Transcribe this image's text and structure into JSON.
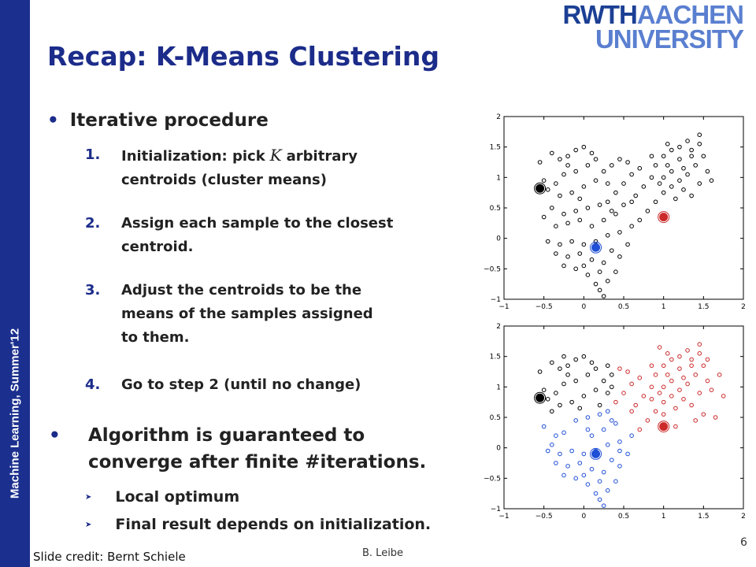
{
  "sidebar": {
    "text": "Machine Learning, Summer'12",
    "color": "#1b2f8e"
  },
  "logo": {
    "part1": "RWTH",
    "part2": "AACHEN",
    "line2": "UNIVERSITY"
  },
  "title": "Recap: K-Means Clustering",
  "bullet1": "Iterative procedure",
  "steps": [
    {
      "num": "1.",
      "pre": "Initialization: pick",
      "var": "K",
      "post": "arbitrary",
      "line2": "centroids (cluster means)"
    },
    {
      "num": "2.",
      "line1": "Assign each sample to the closest",
      "line2": "centroid."
    },
    {
      "num": "3.",
      "line1": "Adjust the centroids to be the",
      "line2": "means of the samples assigned",
      "line3": "to them."
    },
    {
      "num": "4.",
      "line1": "Go to step 2 (until no change)"
    }
  ],
  "bullet2": {
    "line1": "Algorithm is guaranteed to",
    "line2": "converge after finite #iterations."
  },
  "sub_bullets": [
    "Local optimum",
    "Final result depends on initialization."
  ],
  "footer": {
    "credit": "Slide credit: Bernt Schiele",
    "author": "B. Leibe",
    "page": "6"
  },
  "colors": {
    "title": "#1c2c8a",
    "cluster_black": "#000000",
    "cluster_red": "#cc2a2a",
    "cluster_blue": "#1f4fd6"
  },
  "chart_data": [
    {
      "type": "scatter",
      "title": "",
      "xlim": [
        -1,
        2
      ],
      "ylim": [
        -1,
        2
      ],
      "x_ticks": [
        "−1",
        "−0.5",
        "0",
        "0.5",
        "1",
        "1.5",
        "2"
      ],
      "y_ticks": [
        "−1",
        "−0.5",
        "0",
        "0.5",
        "1",
        "1.5",
        "2"
      ],
      "series": [
        {
          "color": "#000000",
          "points": [
            [
              -0.55,
              1.25
            ],
            [
              -0.5,
              0.95
            ],
            [
              -0.4,
              1.4
            ],
            [
              -0.3,
              1.3
            ],
            [
              -0.2,
              1.35
            ],
            [
              -0.1,
              1.45
            ],
            [
              0.0,
              1.5
            ],
            [
              0.1,
              1.4
            ],
            [
              0.05,
              1.2
            ],
            [
              -0.1,
              1.1
            ],
            [
              -0.25,
              1.05
            ],
            [
              -0.35,
              0.9
            ],
            [
              -0.45,
              0.8
            ],
            [
              -0.3,
              0.7
            ],
            [
              -0.15,
              0.75
            ],
            [
              0.0,
              0.85
            ],
            [
              0.15,
              0.95
            ],
            [
              0.25,
              1.1
            ],
            [
              0.35,
              1.2
            ],
            [
              0.45,
              1.3
            ],
            [
              0.55,
              1.25
            ],
            [
              0.6,
              1.05
            ],
            [
              0.5,
              0.9
            ],
            [
              0.4,
              0.75
            ],
            [
              0.3,
              0.6
            ],
            [
              0.2,
              0.55
            ],
            [
              0.05,
              0.5
            ],
            [
              -0.1,
              0.45
            ],
            [
              -0.25,
              0.4
            ],
            [
              -0.4,
              0.5
            ],
            [
              -0.5,
              0.35
            ],
            [
              -0.35,
              0.2
            ],
            [
              -0.2,
              0.25
            ],
            [
              -0.05,
              0.3
            ],
            [
              0.1,
              0.2
            ],
            [
              0.25,
              0.3
            ],
            [
              0.4,
              0.4
            ],
            [
              0.5,
              0.55
            ],
            [
              0.65,
              0.7
            ],
            [
              0.75,
              0.85
            ],
            [
              0.85,
              1.0
            ],
            [
              0.9,
              1.2
            ],
            [
              1.0,
              1.35
            ],
            [
              1.1,
              1.45
            ],
            [
              1.2,
              1.5
            ],
            [
              1.3,
              1.6
            ],
            [
              1.45,
              1.55
            ],
            [
              1.5,
              1.35
            ],
            [
              1.4,
              1.2
            ],
            [
              1.3,
              1.05
            ],
            [
              1.2,
              0.95
            ],
            [
              1.1,
              0.85
            ],
            [
              1.0,
              0.75
            ],
            [
              0.9,
              0.6
            ],
            [
              0.8,
              0.45
            ],
            [
              1.15,
              0.65
            ],
            [
              1.25,
              0.8
            ],
            [
              1.35,
              0.7
            ],
            [
              1.45,
              0.9
            ],
            [
              1.55,
              1.1
            ],
            [
              1.6,
              0.95
            ],
            [
              1.1,
              1.1
            ],
            [
              1.0,
              1.0
            ],
            [
              0.95,
              0.9
            ],
            [
              1.2,
              1.3
            ],
            [
              1.05,
              1.55
            ],
            [
              1.35,
              1.45
            ],
            [
              0.7,
              0.3
            ],
            [
              0.6,
              0.2
            ],
            [
              0.45,
              0.1
            ],
            [
              0.3,
              0.05
            ],
            [
              0.15,
              -0.05
            ],
            [
              0.0,
              -0.1
            ],
            [
              -0.15,
              -0.05
            ],
            [
              -0.3,
              -0.1
            ],
            [
              -0.45,
              -0.05
            ],
            [
              -0.35,
              -0.25
            ],
            [
              -0.2,
              -0.3
            ],
            [
              -0.05,
              -0.25
            ],
            [
              0.1,
              -0.35
            ],
            [
              0.25,
              -0.4
            ],
            [
              0.35,
              -0.2
            ],
            [
              0.45,
              -0.3
            ],
            [
              0.2,
              -0.55
            ],
            [
              0.05,
              -0.6
            ],
            [
              -0.1,
              -0.5
            ],
            [
              -0.25,
              -0.45
            ],
            [
              0.15,
              -0.75
            ],
            [
              0.3,
              -0.7
            ],
            [
              0.0,
              -0.45
            ],
            [
              0.55,
              -0.1
            ],
            [
              0.4,
              -0.55
            ],
            [
              0.25,
              -0.95
            ],
            [
              0.2,
              -0.85
            ],
            [
              1.45,
              1.7
            ],
            [
              1.35,
              1.35
            ],
            [
              0.85,
              1.35
            ],
            [
              -0.2,
              1.2
            ],
            [
              0.15,
              1.3
            ],
            [
              0.3,
              0.9
            ],
            [
              -0.05,
              0.65
            ],
            [
              0.35,
              0.45
            ],
            [
              0.6,
              0.6
            ],
            [
              1.05,
              1.2
            ],
            [
              1.25,
              1.15
            ],
            [
              0.7,
              1.15
            ]
          ]
        },
        {
          "color": "#cc2a2a",
          "points": [
            [
              1.0,
              0.35
            ]
          ],
          "centroid": true
        },
        {
          "color": "#1f4fd6",
          "points": [
            [
              0.15,
              -0.15
            ]
          ],
          "centroid": true
        },
        {
          "color": "#000000",
          "points": [
            [
              -0.55,
              0.82
            ]
          ],
          "centroid": true
        }
      ]
    },
    {
      "type": "scatter",
      "title": "",
      "xlim": [
        -1,
        2
      ],
      "ylim": [
        -1,
        2
      ],
      "x_ticks": [
        "−1",
        "−0.5",
        "0",
        "0.5",
        "1",
        "1.5",
        "2"
      ],
      "y_ticks": [
        "−1",
        "−0.5",
        "0",
        "0.5",
        "1",
        "1.5",
        "2"
      ],
      "series": [
        {
          "color": "#000000",
          "points": [
            [
              -0.55,
              1.25
            ],
            [
              -0.5,
              0.95
            ],
            [
              -0.4,
              1.4
            ],
            [
              -0.3,
              1.3
            ],
            [
              -0.2,
              1.35
            ],
            [
              -0.1,
              1.45
            ],
            [
              0.0,
              1.5
            ],
            [
              0.1,
              1.4
            ],
            [
              0.05,
              1.2
            ],
            [
              -0.1,
              1.1
            ],
            [
              -0.25,
              1.05
            ],
            [
              -0.35,
              0.9
            ],
            [
              -0.45,
              0.8
            ],
            [
              -0.3,
              0.7
            ],
            [
              -0.15,
              0.75
            ],
            [
              0.0,
              0.85
            ],
            [
              0.15,
              0.95
            ],
            [
              0.25,
              1.1
            ],
            [
              0.35,
              1.2
            ],
            [
              0.3,
              0.9
            ],
            [
              -0.2,
              1.2
            ],
            [
              0.15,
              1.3
            ],
            [
              -0.05,
              0.65
            ],
            [
              0.2,
              0.7
            ],
            [
              -0.4,
              0.6
            ],
            [
              0.3,
              1.35
            ],
            [
              0.35,
              1.0
            ],
            [
              -0.25,
              1.5
            ]
          ]
        },
        {
          "color": "#cc2a2a",
          "points": [
            [
              0.45,
              1.3
            ],
            [
              0.55,
              1.25
            ],
            [
              0.6,
              1.05
            ],
            [
              0.5,
              0.9
            ],
            [
              0.4,
              0.75
            ],
            [
              0.65,
              0.7
            ],
            [
              0.75,
              0.85
            ],
            [
              0.85,
              1.0
            ],
            [
              0.9,
              1.2
            ],
            [
              1.0,
              1.35
            ],
            [
              1.1,
              1.45
            ],
            [
              1.2,
              1.5
            ],
            [
              1.3,
              1.6
            ],
            [
              1.45,
              1.55
            ],
            [
              1.5,
              1.35
            ],
            [
              1.4,
              1.2
            ],
            [
              1.3,
              1.05
            ],
            [
              1.2,
              0.95
            ],
            [
              1.1,
              0.85
            ],
            [
              1.0,
              0.75
            ],
            [
              0.9,
              0.6
            ],
            [
              0.8,
              0.45
            ],
            [
              1.15,
              0.65
            ],
            [
              1.25,
              0.8
            ],
            [
              1.35,
              0.7
            ],
            [
              1.45,
              0.9
            ],
            [
              1.55,
              1.1
            ],
            [
              1.6,
              0.95
            ],
            [
              1.1,
              1.1
            ],
            [
              1.0,
              1.0
            ],
            [
              0.95,
              0.9
            ],
            [
              1.2,
              1.3
            ],
            [
              1.05,
              1.55
            ],
            [
              1.35,
              1.45
            ],
            [
              1.45,
              1.7
            ],
            [
              1.35,
              1.35
            ],
            [
              0.85,
              1.35
            ],
            [
              1.05,
              1.2
            ],
            [
              1.25,
              1.15
            ],
            [
              0.7,
              1.15
            ],
            [
              0.6,
              0.6
            ],
            [
              0.7,
              0.3
            ],
            [
              1.65,
              0.5
            ],
            [
              1.5,
              0.55
            ],
            [
              1.75,
              0.85
            ],
            [
              1.7,
              1.2
            ],
            [
              1.0,
              0.55
            ],
            [
              0.85,
              0.8
            ],
            [
              1.15,
              0.35
            ],
            [
              1.4,
              0.45
            ],
            [
              0.95,
              1.65
            ],
            [
              1.55,
              1.45
            ]
          ]
        },
        {
          "color": "#1f4fd6",
          "points": [
            [
              0.6,
              0.2
            ],
            [
              0.45,
              0.1
            ],
            [
              0.3,
              0.05
            ],
            [
              0.15,
              -0.05
            ],
            [
              0.0,
              -0.1
            ],
            [
              -0.15,
              -0.05
            ],
            [
              -0.3,
              -0.1
            ],
            [
              -0.45,
              -0.05
            ],
            [
              -0.35,
              -0.25
            ],
            [
              -0.2,
              -0.3
            ],
            [
              -0.05,
              -0.25
            ],
            [
              0.1,
              -0.35
            ],
            [
              0.25,
              -0.4
            ],
            [
              0.35,
              -0.2
            ],
            [
              0.45,
              -0.3
            ],
            [
              0.2,
              -0.55
            ],
            [
              0.05,
              -0.6
            ],
            [
              -0.1,
              -0.5
            ],
            [
              -0.25,
              -0.45
            ],
            [
              0.15,
              -0.75
            ],
            [
              0.3,
              -0.7
            ],
            [
              0.0,
              -0.45
            ],
            [
              0.55,
              -0.1
            ],
            [
              0.4,
              -0.55
            ],
            [
              0.25,
              -0.95
            ],
            [
              0.2,
              -0.85
            ],
            [
              0.05,
              0.3
            ],
            [
              0.1,
              0.2
            ],
            [
              0.25,
              0.3
            ],
            [
              0.4,
              0.4
            ],
            [
              0.35,
              0.45
            ],
            [
              -0.25,
              0.25
            ],
            [
              -0.1,
              0.45
            ],
            [
              0.05,
              0.5
            ],
            [
              0.2,
              0.55
            ],
            [
              -0.35,
              0.2
            ],
            [
              -0.5,
              0.35
            ],
            [
              0.3,
              0.6
            ],
            [
              -0.4,
              0.05
            ],
            [
              0.45,
              -0.05
            ]
          ]
        },
        {
          "color": "#000000",
          "points": [
            [
              -0.55,
              0.82
            ]
          ],
          "centroid": true
        },
        {
          "color": "#cc2a2a",
          "points": [
            [
              1.0,
              0.35
            ]
          ],
          "centroid": true
        },
        {
          "color": "#1f4fd6",
          "points": [
            [
              0.15,
              -0.1
            ]
          ],
          "centroid": true
        }
      ]
    }
  ]
}
